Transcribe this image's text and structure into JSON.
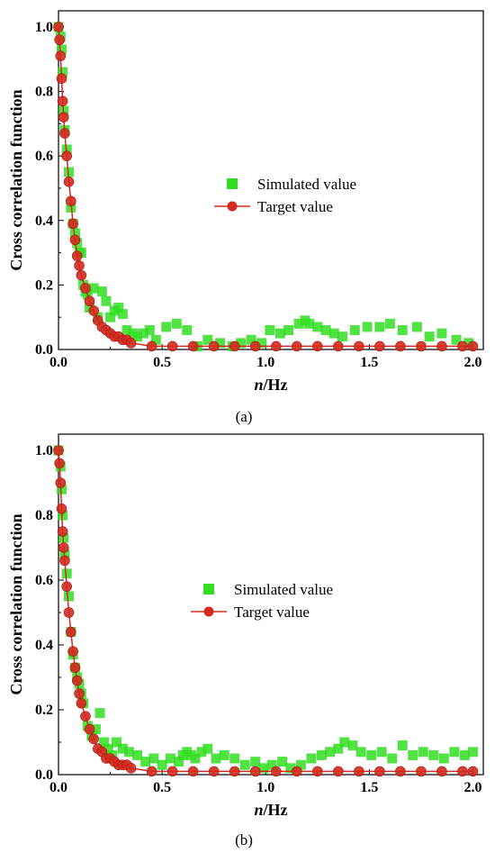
{
  "chart_data": [
    {
      "panel_label": "(a)",
      "type": "scatter",
      "xlabel_italic": "n",
      "xlabel_rest": "/Hz",
      "ylabel": "Cross correlation function",
      "xlim": [
        0,
        2.05
      ],
      "ylim": [
        0,
        1.05
      ],
      "xticks": [
        "0.0",
        "0.5",
        "1.0",
        "1.5",
        "2.0"
      ],
      "yticks": [
        "0.0",
        "0.2",
        "0.4",
        "0.6",
        "0.8",
        "1.0"
      ],
      "legend_position": "center-right",
      "colors": {
        "simulated": "#33dd22",
        "target": "#d42a1e"
      },
      "series": [
        {
          "name": "Simulated value",
          "marker": "square",
          "x": [
            0.0,
            0.01,
            0.015,
            0.02,
            0.025,
            0.03,
            0.04,
            0.05,
            0.06,
            0.07,
            0.08,
            0.09,
            0.1,
            0.11,
            0.12,
            0.13,
            0.14,
            0.15,
            0.17,
            0.19,
            0.21,
            0.23,
            0.25,
            0.27,
            0.29,
            0.31,
            0.33,
            0.36,
            0.38,
            0.41,
            0.44,
            0.47,
            0.52,
            0.57,
            0.62,
            0.67,
            0.72,
            0.78,
            0.84,
            0.88,
            0.93,
            0.98,
            1.02,
            1.07,
            1.11,
            1.16,
            1.19,
            1.21,
            1.25,
            1.29,
            1.33,
            1.37,
            1.43,
            1.49,
            1.55,
            1.6,
            1.66,
            1.73,
            1.79,
            1.85,
            1.92,
            1.98
          ],
          "y": [
            1.0,
            0.97,
            0.93,
            0.86,
            0.74,
            0.68,
            0.62,
            0.55,
            0.44,
            0.39,
            0.36,
            0.33,
            0.3,
            0.3,
            0.2,
            0.18,
            0.17,
            0.13,
            0.19,
            0.1,
            0.18,
            0.15,
            0.1,
            0.12,
            0.13,
            0.11,
            0.06,
            0.05,
            0.04,
            0.05,
            0.06,
            0.03,
            0.07,
            0.08,
            0.06,
            0.01,
            0.03,
            0.02,
            0.01,
            0.02,
            0.03,
            0.02,
            0.06,
            0.05,
            0.06,
            0.08,
            0.09,
            0.08,
            0.07,
            0.06,
            0.05,
            0.04,
            0.06,
            0.07,
            0.07,
            0.08,
            0.06,
            0.07,
            0.04,
            0.05,
            0.03,
            0.02
          ]
        },
        {
          "name": "Target value",
          "marker": "circle-line",
          "x": [
            0.0,
            0.005,
            0.01,
            0.015,
            0.02,
            0.025,
            0.03,
            0.04,
            0.05,
            0.06,
            0.07,
            0.08,
            0.09,
            0.1,
            0.11,
            0.13,
            0.15,
            0.17,
            0.19,
            0.21,
            0.23,
            0.25,
            0.27,
            0.29,
            0.31,
            0.33,
            0.35,
            0.45,
            0.55,
            0.65,
            0.75,
            0.85,
            0.95,
            1.05,
            1.15,
            1.25,
            1.35,
            1.45,
            1.55,
            1.65,
            1.75,
            1.85,
            1.95,
            2.0
          ],
          "y": [
            1.0,
            0.96,
            0.91,
            0.84,
            0.77,
            0.72,
            0.67,
            0.6,
            0.52,
            0.46,
            0.39,
            0.34,
            0.29,
            0.26,
            0.23,
            0.19,
            0.15,
            0.12,
            0.09,
            0.07,
            0.06,
            0.05,
            0.04,
            0.04,
            0.03,
            0.03,
            0.02,
            0.01,
            0.01,
            0.01,
            0.01,
            0.01,
            0.01,
            0.01,
            0.01,
            0.01,
            0.01,
            0.01,
            0.01,
            0.01,
            0.01,
            0.01,
            0.01,
            0.01
          ]
        }
      ]
    },
    {
      "panel_label": "(b)",
      "type": "scatter",
      "xlabel_italic": "n",
      "xlabel_rest": "/Hz",
      "ylabel": "Cross correlation function",
      "xlim": [
        0,
        2.05
      ],
      "ylim": [
        0,
        1.05
      ],
      "xticks": [
        "0.0",
        "0.5",
        "1.0",
        "1.5",
        "2.0"
      ],
      "yticks": [
        "0.0",
        "0.2",
        "0.4",
        "0.6",
        "0.8",
        "1.0"
      ],
      "legend_position": "center-right",
      "colors": {
        "simulated": "#33dd22",
        "target": "#d42a1e"
      },
      "series": [
        {
          "name": "Simulated value",
          "marker": "square",
          "x": [
            0.0,
            0.01,
            0.015,
            0.02,
            0.025,
            0.03,
            0.04,
            0.05,
            0.06,
            0.07,
            0.08,
            0.09,
            0.1,
            0.11,
            0.12,
            0.14,
            0.16,
            0.18,
            0.2,
            0.22,
            0.24,
            0.26,
            0.28,
            0.31,
            0.34,
            0.38,
            0.42,
            0.46,
            0.5,
            0.54,
            0.58,
            0.6,
            0.62,
            0.64,
            0.66,
            0.69,
            0.72,
            0.76,
            0.8,
            0.85,
            0.9,
            0.95,
            0.99,
            1.03,
            1.08,
            1.12,
            1.17,
            1.22,
            1.27,
            1.31,
            1.35,
            1.38,
            1.42,
            1.46,
            1.51,
            1.56,
            1.61,
            1.66,
            1.71,
            1.76,
            1.81,
            1.86,
            1.91,
            1.96,
            2.0
          ],
          "y": [
            1.0,
            0.95,
            0.88,
            0.8,
            0.73,
            0.68,
            0.62,
            0.55,
            0.44,
            0.37,
            0.33,
            0.3,
            0.28,
            0.25,
            0.22,
            0.15,
            0.12,
            0.14,
            0.19,
            0.1,
            0.08,
            0.06,
            0.1,
            0.08,
            0.07,
            0.06,
            0.04,
            0.05,
            0.03,
            0.05,
            0.04,
            0.06,
            0.07,
            0.06,
            0.05,
            0.07,
            0.08,
            0.05,
            0.06,
            0.05,
            0.03,
            0.04,
            0.02,
            0.03,
            0.04,
            0.02,
            0.03,
            0.05,
            0.06,
            0.07,
            0.08,
            0.1,
            0.09,
            0.07,
            0.06,
            0.07,
            0.05,
            0.09,
            0.06,
            0.07,
            0.06,
            0.05,
            0.07,
            0.06,
            0.07
          ]
        },
        {
          "name": "Target value",
          "marker": "circle-line",
          "x": [
            0.0,
            0.005,
            0.01,
            0.015,
            0.02,
            0.025,
            0.03,
            0.04,
            0.05,
            0.06,
            0.07,
            0.08,
            0.09,
            0.1,
            0.11,
            0.13,
            0.15,
            0.17,
            0.19,
            0.21,
            0.23,
            0.25,
            0.27,
            0.29,
            0.31,
            0.33,
            0.35,
            0.45,
            0.55,
            0.65,
            0.75,
            0.85,
            0.95,
            1.05,
            1.15,
            1.25,
            1.35,
            1.45,
            1.55,
            1.65,
            1.75,
            1.85,
            1.95,
            2.0
          ],
          "y": [
            1.0,
            0.96,
            0.9,
            0.82,
            0.75,
            0.7,
            0.66,
            0.58,
            0.5,
            0.44,
            0.38,
            0.33,
            0.29,
            0.25,
            0.22,
            0.18,
            0.14,
            0.11,
            0.08,
            0.07,
            0.05,
            0.05,
            0.04,
            0.03,
            0.03,
            0.03,
            0.02,
            0.01,
            0.01,
            0.01,
            0.01,
            0.01,
            0.01,
            0.01,
            0.01,
            0.01,
            0.01,
            0.01,
            0.01,
            0.01,
            0.01,
            0.01,
            0.01,
            0.01
          ]
        }
      ]
    }
  ]
}
